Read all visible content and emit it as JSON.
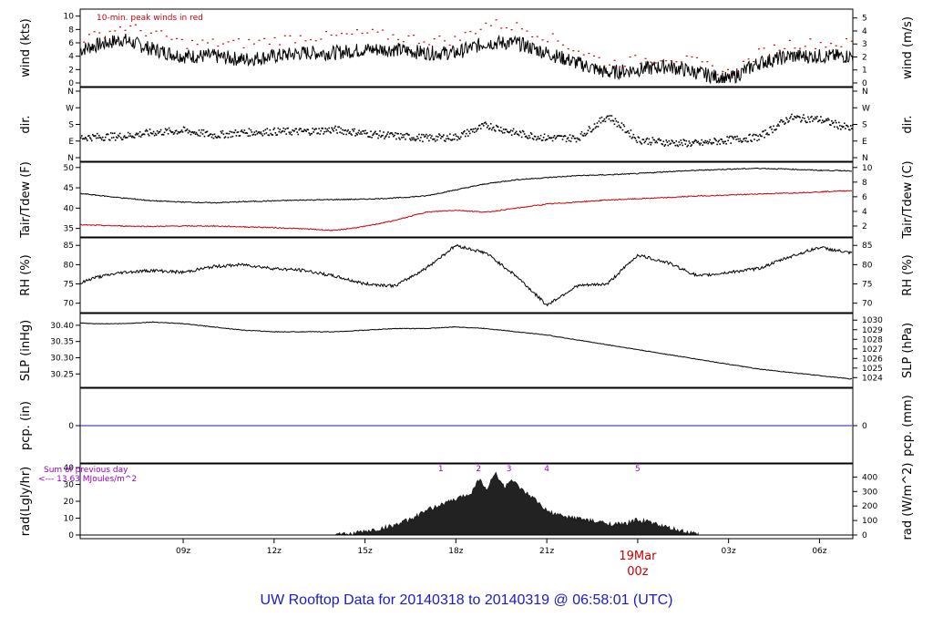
{
  "title": "UW Rooftop Data for 20140318  to  20140319 @ 06:58:01  (UTC)",
  "colors": {
    "primary": "#000000",
    "accent": "#cc0000",
    "blue": "#1a1acc",
    "purple": "#9900cc"
  },
  "chart_data": [
    {
      "id": "wind",
      "type": "line",
      "ylabel_left": "wind (kts)",
      "ylabel_right": "wind (m/s)",
      "ylim": [
        0,
        10.5
      ],
      "left_ticks": [
        "0",
        "2",
        "4",
        "6",
        "8",
        "10"
      ],
      "right_ticks": [
        "0",
        "1",
        "2",
        "3",
        "4",
        "5"
      ],
      "right_scale": "m/s",
      "annotation": "10-min. peak winds in red",
      "series": [
        {
          "role": "wind speed",
          "hours": [
            5,
            6,
            7,
            8,
            9,
            10,
            11,
            12,
            13,
            14,
            15,
            16,
            17,
            18,
            19,
            20,
            21,
            22,
            23,
            24,
            25,
            26,
            27,
            28,
            29,
            30,
            31
          ],
          "values": [
            4,
            5.5,
            6.5,
            5,
            4,
            4,
            3.5,
            4,
            4.5,
            4.5,
            5,
            5,
            4.5,
            4.5,
            6,
            6,
            4.5,
            3,
            1.5,
            2,
            2.5,
            1.5,
            0.5,
            3,
            4,
            4,
            4
          ]
        },
        {
          "role": "10-min peak",
          "hours": [
            5,
            6,
            7,
            8,
            9,
            10,
            11,
            12,
            13,
            14,
            15,
            16,
            17,
            18,
            19,
            20,
            21,
            22,
            23,
            24,
            25,
            26,
            27,
            28,
            29,
            30,
            31
          ],
          "values": [
            6,
            7,
            8.5,
            7.5,
            6,
            6,
            6,
            6.5,
            7,
            7,
            7.5,
            7,
            6.5,
            6.5,
            9,
            8.5,
            7,
            5,
            3,
            3.5,
            4,
            3,
            1.5,
            4.5,
            6,
            6,
            6
          ]
        }
      ]
    },
    {
      "id": "dir",
      "type": "scatter",
      "ylabel_left": "dir.",
      "ylabel_right": "dir.",
      "ylim": [
        0,
        360
      ],
      "left_ticks": [
        "N",
        "E",
        "S",
        "W",
        "N"
      ],
      "right_ticks": [
        "N",
        "E",
        "S",
        "W",
        "N"
      ],
      "hours": [
        5,
        6,
        7,
        8,
        9,
        10,
        11,
        12,
        13,
        14,
        15,
        16,
        17,
        18,
        19,
        20,
        21,
        22,
        23,
        24,
        25,
        26,
        27,
        28,
        29,
        30,
        31
      ],
      "values": [
        110,
        115,
        120,
        140,
        150,
        125,
        140,
        145,
        145,
        155,
        135,
        120,
        110,
        115,
        180,
        135,
        110,
        110,
        230,
        100,
        85,
        80,
        100,
        115,
        220,
        210,
        160
      ]
    },
    {
      "id": "temp",
      "type": "line",
      "ylabel_left": "Tair/Tdew (F)",
      "ylabel_right": "Tair/Tdew (C)",
      "ylim": [
        33.8,
        50.4
      ],
      "left_ticks": [
        "35",
        "40",
        "45",
        "50"
      ],
      "right_ticks": [
        "2",
        "4",
        "6",
        "8",
        "10"
      ],
      "series": [
        {
          "role": "air temperature",
          "hours": [
            5,
            6,
            7,
            8,
            9,
            10,
            11,
            12,
            13,
            14,
            15,
            16,
            17,
            18,
            19,
            20,
            21,
            22,
            23,
            24,
            25,
            26,
            27,
            28,
            29,
            30,
            31
          ],
          "values": [
            44,
            43.3,
            42.5,
            41.8,
            41.5,
            41.3,
            41.6,
            41.8,
            42,
            42.1,
            42.2,
            42.5,
            43,
            44.5,
            46,
            47,
            47.5,
            48,
            48.2,
            48.5,
            49,
            49.3,
            49.6,
            49.8,
            49.6,
            49.3,
            49.2
          ]
        },
        {
          "role": "dew point",
          "hours": [
            5,
            6,
            7,
            8,
            9,
            10,
            11,
            12,
            13,
            14,
            15,
            16,
            17,
            18,
            19,
            20,
            21,
            22,
            23,
            24,
            25,
            26,
            27,
            28,
            29,
            30,
            31
          ],
          "values": [
            36,
            35.8,
            35.6,
            35.5,
            35.6,
            35.6,
            35.4,
            35.2,
            34.9,
            34.5,
            35.5,
            37,
            39,
            39.5,
            39,
            40,
            41,
            41.5,
            42,
            42.3,
            42.6,
            43,
            43.2,
            43.5,
            43.7,
            44,
            44.3
          ]
        }
      ]
    },
    {
      "id": "rh",
      "type": "line",
      "ylabel_left": "RH (%)",
      "ylabel_right": "RH (%)",
      "ylim": [
        68.5,
        86
      ],
      "left_ticks": [
        "70",
        "75",
        "80",
        "85"
      ],
      "right_ticks": [
        "70",
        "75",
        "80",
        "85"
      ],
      "series": [
        {
          "role": "relative humidity",
          "hours": [
            5,
            6,
            7,
            8,
            9,
            10,
            11,
            12,
            13,
            14,
            15,
            16,
            17,
            18,
            19,
            20,
            21,
            22,
            23,
            24,
            25,
            26,
            27,
            28,
            29,
            30,
            31
          ],
          "values": [
            73,
            76.5,
            78,
            78.5,
            78,
            79.5,
            80,
            79,
            78.5,
            77,
            75,
            74.5,
            79,
            85,
            83,
            77,
            69.5,
            74.5,
            75,
            82.5,
            80.5,
            77,
            78,
            79,
            82,
            84.5,
            83
          ]
        }
      ]
    },
    {
      "id": "slp",
      "type": "line",
      "ylabel_left": "SLP (inHg)",
      "ylabel_right": "SLP (hPa)",
      "ylim": [
        30.22,
        30.425
      ],
      "left_ticks": [
        "30.25",
        "30.30",
        "30.35",
        "30.40"
      ],
      "right_ticks": [
        "1024",
        "1025",
        "1026",
        "1027",
        "1028",
        "1029",
        "1030"
      ],
      "series": [
        {
          "role": "sea level pressure",
          "hours": [
            5,
            6,
            7,
            8,
            9,
            10,
            11,
            12,
            13,
            14,
            15,
            16,
            17,
            18,
            19,
            20,
            21,
            22,
            23,
            24,
            25,
            26,
            27,
            28,
            29,
            30,
            31
          ],
          "values": [
            30.41,
            30.405,
            30.405,
            30.41,
            30.405,
            30.395,
            30.385,
            30.38,
            30.38,
            30.38,
            30.385,
            30.39,
            30.39,
            30.395,
            30.39,
            30.38,
            30.37,
            30.355,
            30.34,
            30.325,
            30.31,
            30.295,
            30.28,
            30.265,
            30.255,
            30.245,
            30.235
          ]
        }
      ]
    },
    {
      "id": "pcp",
      "type": "line",
      "ylabel_left": "pcp. (in)",
      "ylabel_right": "pcp. (mm)",
      "ylim": [
        -1,
        1
      ],
      "left_ticks": [
        "0"
      ],
      "right_ticks": [
        "0"
      ],
      "series": [
        {
          "role": "precipitation",
          "hours": [
            5,
            31
          ],
          "values": [
            0,
            0
          ]
        }
      ]
    },
    {
      "id": "rad",
      "type": "area",
      "ylabel_left": "rad(Lgly/hr)",
      "ylabel_right": "rad (W/m^2)",
      "ylim": [
        0,
        40
      ],
      "left_ticks": [
        "0",
        "10",
        "20",
        "30",
        "40"
      ],
      "right_ticks": [
        "0",
        "100",
        "200",
        "300",
        "400"
      ],
      "summary_line1": "Sum of previous day",
      "summary_line2": "<--- 13.63 MJoules/m^2",
      "markers": [
        "1",
        "2",
        "3",
        "4",
        "5"
      ],
      "marker_hours": [
        17.5,
        18.75,
        19.75,
        21,
        24
      ],
      "series": [
        {
          "role": "solar radiation",
          "hours": [
            14,
            14.5,
            15,
            15.5,
            16,
            16.5,
            17,
            17.5,
            18,
            18.5,
            18.8,
            19,
            19.3,
            19.6,
            19.8,
            20.2,
            20.6,
            21,
            21.5,
            22,
            22.5,
            23,
            23.5,
            24,
            24.5,
            25,
            25.5,
            26
          ],
          "values": [
            0,
            0.5,
            2,
            3.5,
            6,
            9,
            14,
            18,
            21,
            25,
            34,
            26,
            37,
            28,
            33,
            26,
            21,
            14,
            11,
            10,
            8,
            7,
            6,
            9,
            7,
            4,
            2,
            0
          ]
        }
      ]
    }
  ],
  "xaxis": {
    "hour_start": 5.6,
    "hour_end": 31.1,
    "tick_hours": [
      9,
      12,
      15,
      18,
      21,
      24,
      27,
      30
    ],
    "tick_labels": [
      "09z",
      "12z",
      "15z",
      "18z",
      "21z",
      "19Mar",
      "03z",
      "06z"
    ],
    "day_marker": {
      "line1": "19Mar",
      "line2": "00z"
    }
  }
}
